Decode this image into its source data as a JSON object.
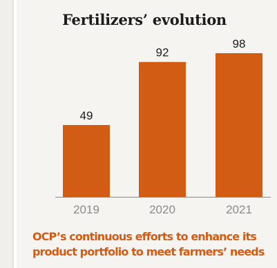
{
  "chart_data": {
    "type": "bar",
    "title": "Fertilizers’ evolution",
    "categories": [
      "2019",
      "2020",
      "2021"
    ],
    "values": [
      49,
      92,
      98
    ],
    "ylim": [
      0,
      98
    ],
    "grid": false,
    "bar_color": "#d35c14"
  },
  "caption": {
    "line1": "OCP’s continuous efforts to enhance its",
    "line2": "product portfolio to meet farmers’ needs"
  },
  "colors": {
    "accent": "#d35c14",
    "panel": "#f6f4f1",
    "axis": "#888888",
    "text": "#1b1b1b"
  }
}
